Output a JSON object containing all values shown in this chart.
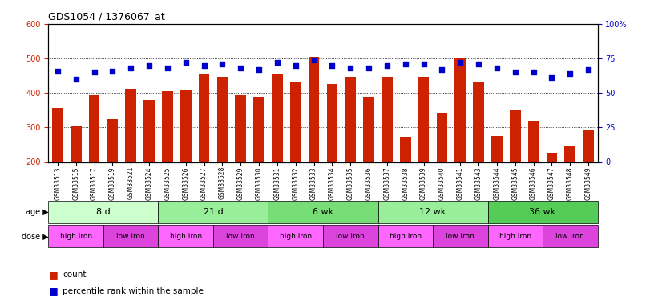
{
  "title": "GDS1054 / 1376067_at",
  "samples": [
    "GSM33513",
    "GSM33515",
    "GSM33517",
    "GSM33519",
    "GSM33521",
    "GSM33524",
    "GSM33525",
    "GSM33526",
    "GSM33527",
    "GSM33528",
    "GSM33529",
    "GSM33530",
    "GSM33531",
    "GSM33532",
    "GSM33533",
    "GSM33534",
    "GSM33535",
    "GSM33536",
    "GSM33537",
    "GSM33538",
    "GSM33539",
    "GSM33540",
    "GSM33541",
    "GSM33543",
    "GSM33544",
    "GSM33545",
    "GSM33546",
    "GSM33547",
    "GSM33548",
    "GSM33549"
  ],
  "counts": [
    357,
    305,
    393,
    325,
    413,
    380,
    405,
    410,
    453,
    448,
    393,
    390,
    456,
    432,
    505,
    427,
    447,
    390,
    447,
    273,
    447,
    343,
    500,
    430,
    275,
    350,
    320,
    227,
    245,
    294
  ],
  "percentiles": [
    66,
    60,
    65,
    66,
    68,
    70,
    68,
    72,
    70,
    71,
    68,
    67,
    72,
    70,
    74,
    70,
    68,
    68,
    70,
    71,
    71,
    67,
    72,
    71,
    68,
    65,
    65,
    61,
    64,
    67
  ],
  "ylim_left": [
    200,
    600
  ],
  "ylim_right": [
    0,
    100
  ],
  "bar_color": "#cc2200",
  "dot_color": "#0000cc",
  "age_groups": [
    {
      "label": "8 d",
      "start": 0,
      "end": 6,
      "color": "#ccffcc"
    },
    {
      "label": "21 d",
      "start": 6,
      "end": 12,
      "color": "#99ee99"
    },
    {
      "label": "6 wk",
      "start": 12,
      "end": 18,
      "color": "#77dd77"
    },
    {
      "label": "12 wk",
      "start": 18,
      "end": 24,
      "color": "#99ee99"
    },
    {
      "label": "36 wk",
      "start": 24,
      "end": 30,
      "color": "#55cc55"
    }
  ],
  "dose_groups": [
    {
      "label": "high iron",
      "start": 0,
      "end": 3,
      "color": "#ff66ff"
    },
    {
      "label": "low iron",
      "start": 3,
      "end": 6,
      "color": "#dd44dd"
    },
    {
      "label": "high iron",
      "start": 6,
      "end": 9,
      "color": "#ff66ff"
    },
    {
      "label": "low iron",
      "start": 9,
      "end": 12,
      "color": "#dd44dd"
    },
    {
      "label": "high iron",
      "start": 12,
      "end": 15,
      "color": "#ff66ff"
    },
    {
      "label": "low iron",
      "start": 15,
      "end": 18,
      "color": "#dd44dd"
    },
    {
      "label": "high iron",
      "start": 18,
      "end": 21,
      "color": "#ff66ff"
    },
    {
      "label": "low iron",
      "start": 21,
      "end": 24,
      "color": "#dd44dd"
    },
    {
      "label": "high iron",
      "start": 24,
      "end": 27,
      "color": "#ff66ff"
    },
    {
      "label": "low iron",
      "start": 27,
      "end": 30,
      "color": "#dd44dd"
    }
  ],
  "legend_count_color": "#cc2200",
  "legend_dot_color": "#0000cc",
  "left_ylabel_color": "#cc2200",
  "right_ylabel_color": "#0000cc",
  "yticks_left": [
    200,
    300,
    400,
    500,
    600
  ],
  "yticks_right": [
    0,
    25,
    50,
    75,
    100
  ]
}
